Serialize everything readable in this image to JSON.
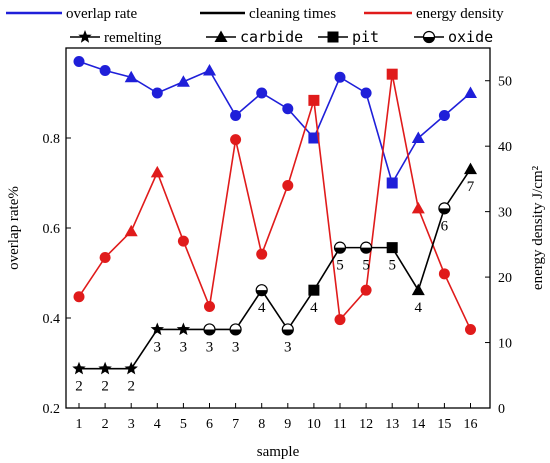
{
  "chart_data": {
    "type": "line",
    "xlabel": "sample",
    "ylabel_left": "overlap rate%",
    "ylabel_right": "energy density J/cm²",
    "x": [
      1,
      2,
      3,
      4,
      5,
      6,
      7,
      8,
      9,
      10,
      11,
      12,
      13,
      14,
      15,
      16
    ],
    "x_ticks": [
      "1",
      "2",
      "3",
      "4",
      "5",
      "6",
      "7",
      "8",
      "9",
      "10",
      "11",
      "12",
      "13",
      "14",
      "15",
      "16"
    ],
    "left_axis": {
      "min": 0.2,
      "max": 1.0,
      "ticks": [
        "0.2",
        "0.4",
        "0.6",
        "0.8"
      ],
      "tick_values": [
        0.2,
        0.4,
        0.6,
        0.8
      ]
    },
    "right_axis": {
      "min": 0,
      "max": 55,
      "ticks": [
        "0",
        "10",
        "20",
        "30",
        "40",
        "50"
      ],
      "tick_values": [
        0,
        10,
        20,
        30,
        40,
        50
      ]
    },
    "legend_line1": [
      {
        "name": "overlap rate",
        "color": "#1f1fd9"
      },
      {
        "name": "cleaning times",
        "color": "#000000"
      },
      {
        "name": "energy density",
        "color": "#e01b1b"
      }
    ],
    "legend_line2": [
      {
        "name": "remelting",
        "marker": "star"
      },
      {
        "name": "carbide",
        "marker": "triangle",
        "mono": true
      },
      {
        "name": "pit",
        "marker": "square",
        "mono": true
      },
      {
        "name": "oxide",
        "marker": "halfcircle",
        "mono": true
      }
    ],
    "series": [
      {
        "name": "overlap rate",
        "axis": "left",
        "color": "#1f1fd9",
        "values": [
          0.97,
          0.95,
          0.935,
          0.9,
          0.925,
          0.95,
          0.85,
          0.9,
          0.865,
          0.8,
          0.935,
          0.9,
          0.7,
          0.8,
          0.85,
          0.9
        ],
        "markers": [
          "circle",
          "circle",
          "triangle",
          "circle",
          "triangle",
          "triangle",
          "circle",
          "circle",
          "circle",
          "square",
          "circle",
          "circle",
          "square",
          "triangle",
          "circle",
          "triangle"
        ]
      },
      {
        "name": "energy density",
        "axis": "right",
        "color": "#e01b1b",
        "values": [
          17,
          23,
          27,
          36,
          25.5,
          15.5,
          41,
          23.5,
          34,
          47,
          13.5,
          18,
          51,
          30.5,
          20.5,
          12
        ],
        "markers": [
          "circle",
          "circle",
          "triangle",
          "triangle",
          "circle",
          "circle",
          "circle",
          "circle",
          "circle",
          "square",
          "circle",
          "circle",
          "square",
          "triangle",
          "circle",
          "circle"
        ]
      },
      {
        "name": "cleaning times",
        "axis": "right",
        "color": "#000000",
        "values": [
          6,
          6,
          6,
          12,
          12,
          12,
          12,
          18,
          12,
          18,
          24.5,
          24.5,
          24.5,
          18,
          30.5,
          36.5
        ],
        "markers": [
          "star",
          "star",
          "star",
          "star",
          "star",
          "halfcircle",
          "halfcircle",
          "halfcircle",
          "halfcircle",
          "square",
          "halfcircle",
          "halfcircle",
          "square",
          "triangle",
          "halfcircle",
          "triangle"
        ],
        "labels": [
          "2",
          "2",
          "2",
          "3",
          "3",
          "3",
          "3",
          "4",
          "3",
          "4",
          "5",
          "5",
          "5",
          "4",
          "6",
          "7"
        ]
      }
    ]
  }
}
